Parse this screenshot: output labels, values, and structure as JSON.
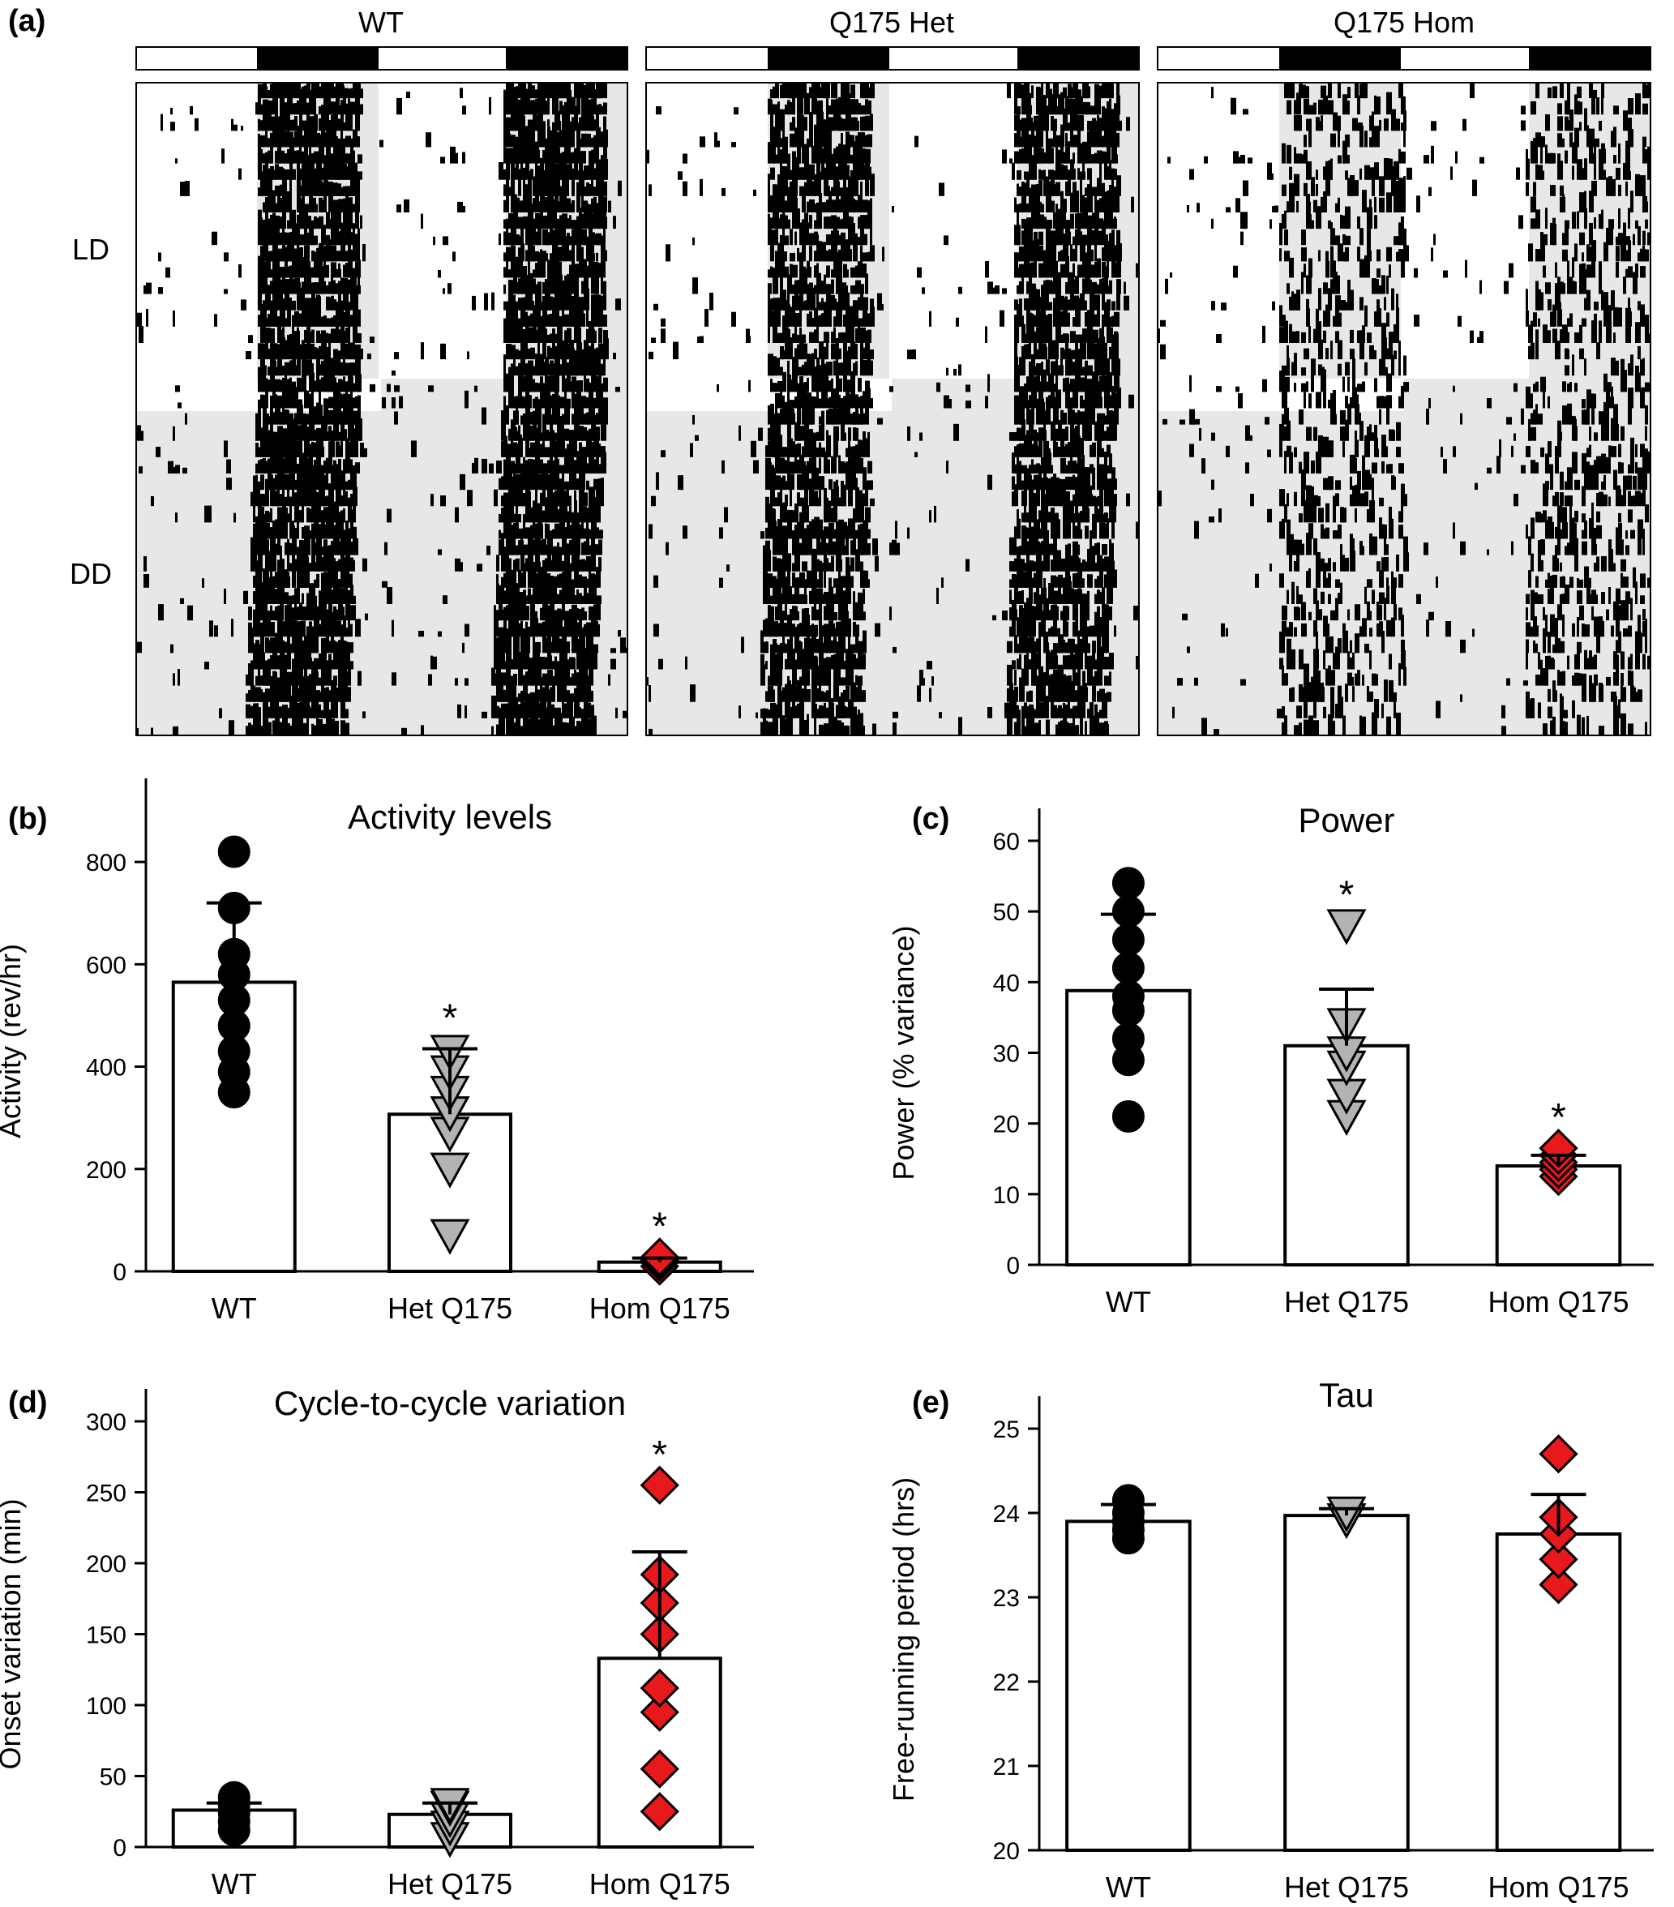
{
  "panels": {
    "a": {
      "label": "(a)",
      "group_titles": [
        "WT",
        "Q175 Het",
        "Q175 Hom"
      ],
      "row_labels": [
        "LD",
        "DD"
      ]
    }
  },
  "chart_data": [
    {
      "id": "b",
      "label": "(b)",
      "type": "bar",
      "title": "Activity levels",
      "xlabel": "",
      "ylabel": "Activity (rev/hr)",
      "ylim": [
        0,
        900
      ],
      "yticks": [
        0,
        200,
        400,
        600,
        800
      ],
      "categories": [
        "WT",
        "Het Q175",
        "Hom Q175"
      ],
      "values": [
        565,
        307,
        18
      ],
      "errors": [
        155,
        128,
        8
      ],
      "markers": [
        "circle",
        "triangle",
        "diamond"
      ],
      "marker_colors": [
        "#000000",
        "#b3b3b3",
        "#e8191c"
      ],
      "significance": [
        "",
        "*",
        "*"
      ],
      "points": [
        [
          350,
          390,
          430,
          480,
          530,
          580,
          620,
          710,
          820
        ],
        [
          70,
          200,
          270,
          310,
          350,
          390,
          430
        ],
        [
          10,
          18,
          22,
          28
        ]
      ]
    },
    {
      "id": "c",
      "label": "(c)",
      "type": "bar",
      "title": "Power",
      "xlabel": "",
      "ylabel": "Power (% variance)",
      "ylim": [
        0,
        60
      ],
      "yticks": [
        0,
        10,
        20,
        30,
        40,
        50,
        60
      ],
      "categories": [
        "WT",
        "Het Q175",
        "Hom Q175"
      ],
      "values": [
        38.8,
        31,
        14
      ],
      "errors": [
        10.8,
        8,
        1.5
      ],
      "markers": [
        "circle",
        "triangle",
        "diamond"
      ],
      "marker_colors": [
        "#000000",
        "#b3b3b3",
        "#e8191c"
      ],
      "significance": [
        "",
        "*",
        "*"
      ],
      "points": [
        [
          21,
          29,
          32,
          36,
          38,
          42,
          46,
          50,
          54
        ],
        [
          21,
          24,
          28,
          30,
          34,
          48
        ],
        [
          12.5,
          13.5,
          14.5,
          15.5,
          16.5
        ]
      ]
    },
    {
      "id": "d",
      "label": "(d)",
      "type": "bar",
      "title": "Cycle-to-cycle variation",
      "xlabel": "",
      "ylabel": "Onset variation (min)",
      "ylim": [
        0,
        300
      ],
      "yticks": [
        0,
        50,
        100,
        150,
        200,
        250,
        300
      ],
      "categories": [
        "WT",
        "Het Q175",
        "Hom Q175"
      ],
      "values": [
        26,
        23,
        133
      ],
      "errors": [
        5,
        8,
        75
      ],
      "markers": [
        "circle",
        "triangle",
        "diamond"
      ],
      "marker_colors": [
        "#000000",
        "#b3b3b3",
        "#e8191c"
      ],
      "significance": [
        "",
        "",
        "*"
      ],
      "points": [
        [
          12,
          18,
          24,
          30,
          35
        ],
        [
          6,
          14,
          20,
          28,
          30
        ],
        [
          25,
          55,
          95,
          112,
          150,
          172,
          192,
          255
        ]
      ]
    },
    {
      "id": "e",
      "label": "(e)",
      "type": "bar",
      "title": "Tau",
      "xlabel": "",
      "ylabel": "Free-running period (hrs)",
      "ylim": [
        20,
        25
      ],
      "yticks": [
        20,
        21,
        22,
        23,
        24,
        25
      ],
      "categories": [
        "WT",
        "Het Q175",
        "Hom Q175"
      ],
      "values": [
        23.9,
        23.97,
        23.75
      ],
      "errors": [
        0.2,
        0.08,
        0.47
      ],
      "markers": [
        "circle",
        "triangle",
        "diamond"
      ],
      "marker_colors": [
        "#000000",
        "#b3b3b3",
        "#e8191c"
      ],
      "significance": [
        "",
        "",
        ""
      ],
      "points": [
        [
          23.7,
          23.8,
          23.9,
          24.0,
          24.15
        ],
        [
          23.92,
          24.0
        ],
        [
          23.15,
          23.45,
          23.75,
          23.95,
          24.7
        ]
      ]
    }
  ]
}
